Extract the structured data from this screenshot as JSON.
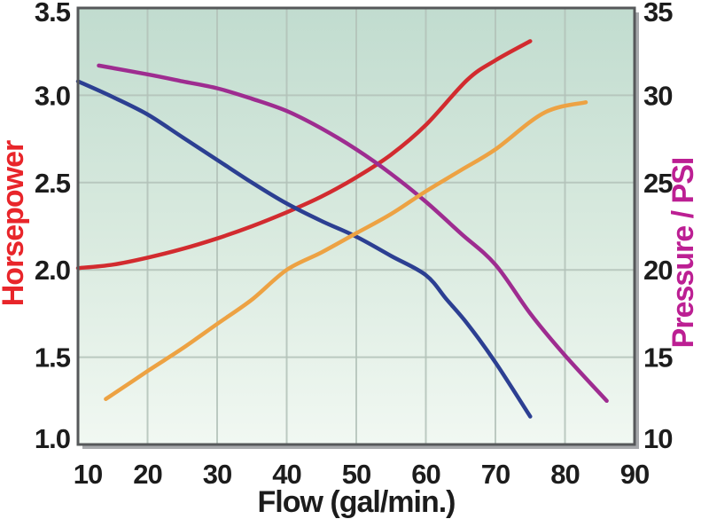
{
  "chart_data": {
    "type": "line",
    "title": "",
    "xlabel": "Flow (gal/min.)",
    "ylabel_left": "Horsepower",
    "ylabel_right": "Pressure / PSI",
    "x_ticks": [
      "10",
      "20",
      "30",
      "40",
      "50",
      "60",
      "70",
      "80",
      "90"
    ],
    "y_left_ticks": [
      "3.5",
      "3.0",
      "2.5",
      "2.0",
      "1.5",
      "1.0"
    ],
    "y_right_ticks": [
      "35",
      "30",
      "25",
      "20",
      "15",
      "10"
    ],
    "xlim": [
      10,
      90
    ],
    "ylim_left": [
      1.0,
      3.5
    ],
    "ylim_right": [
      10,
      35
    ],
    "grid": true,
    "legend": "none",
    "series": [
      {
        "id": "red-horsepower",
        "axis": "left",
        "color": "#d22b2f",
        "points": [
          [
            10,
            2.01
          ],
          [
            15,
            2.03
          ],
          [
            20,
            2.07
          ],
          [
            25,
            2.12
          ],
          [
            30,
            2.18
          ],
          [
            35,
            2.25
          ],
          [
            40,
            2.33
          ],
          [
            45,
            2.42
          ],
          [
            50,
            2.53
          ],
          [
            55,
            2.66
          ],
          [
            60,
            2.83
          ],
          [
            66,
            3.09
          ],
          [
            70,
            3.2
          ],
          [
            75,
            3.31
          ]
        ]
      },
      {
        "id": "blue-curve",
        "axis": "left",
        "color": "#2c3f92",
        "points": [
          [
            10,
            3.08
          ],
          [
            15,
            2.99
          ],
          [
            20,
            2.89
          ],
          [
            25,
            2.76
          ],
          [
            30,
            2.63
          ],
          [
            35,
            2.5
          ],
          [
            40,
            2.38
          ],
          [
            45,
            2.28
          ],
          [
            50,
            2.19
          ],
          [
            55,
            2.08
          ],
          [
            60,
            1.97
          ],
          [
            63,
            1.83
          ],
          [
            66,
            1.69
          ],
          [
            70,
            1.47
          ],
          [
            75,
            1.16
          ]
        ]
      },
      {
        "id": "purple-pressure",
        "axis": "right",
        "color": "#9e2c90",
        "points": [
          [
            13,
            31.7
          ],
          [
            20,
            31.2
          ],
          [
            25,
            30.8
          ],
          [
            30,
            30.4
          ],
          [
            35,
            29.8
          ],
          [
            40,
            29.1
          ],
          [
            45,
            28.1
          ],
          [
            50,
            26.9
          ],
          [
            55,
            25.5
          ],
          [
            60,
            23.9
          ],
          [
            65,
            22.1
          ],
          [
            70,
            20.3
          ],
          [
            75,
            17.5
          ],
          [
            80,
            15.1
          ],
          [
            86,
            12.5
          ]
        ]
      },
      {
        "id": "orange-curve",
        "axis": "right",
        "color": "#eda243",
        "points": [
          [
            14,
            12.6
          ],
          [
            20,
            14.2
          ],
          [
            25,
            15.5
          ],
          [
            30,
            16.9
          ],
          [
            35,
            18.3
          ],
          [
            40,
            20.0
          ],
          [
            45,
            21.0
          ],
          [
            50,
            22.1
          ],
          [
            55,
            23.2
          ],
          [
            60,
            24.5
          ],
          [
            65,
            25.7
          ],
          [
            70,
            26.9
          ],
          [
            77,
            29.0
          ],
          [
            83,
            29.6
          ]
        ]
      }
    ]
  },
  "colors": {
    "page_bg": "#ffffff",
    "plot_border": "#56585a",
    "plot_shadow": "#a7a9ac",
    "plot_bg_top": "#c1dccf",
    "plot_bg_mid": "#d9eadf",
    "plot_bg_bottom": "#f1f8f2",
    "gridline": "#b3c2b9",
    "tick_text": "#1c1c1c",
    "left_axis_title": "#e8252a",
    "right_axis_title": "#bc1f93"
  }
}
